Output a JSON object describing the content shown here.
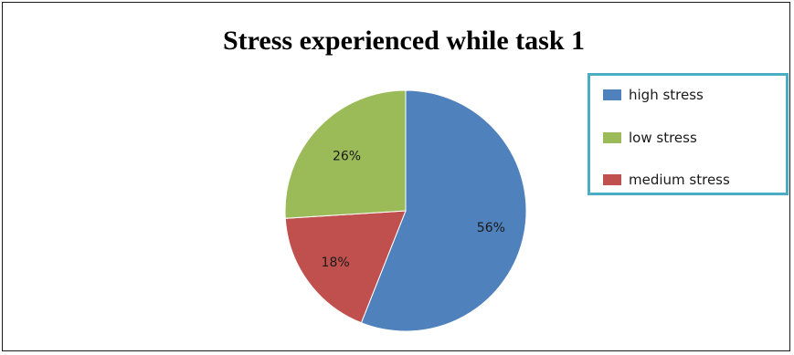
{
  "chart_data": {
    "type": "pie",
    "title": "Stress experienced while task 1",
    "categories": [
      "high stress",
      "medium stress",
      "low stress"
    ],
    "values": [
      56,
      18,
      26
    ],
    "value_labels": [
      "56%",
      "18%",
      "26%"
    ],
    "colors": [
      "#4f81bd",
      "#c0504d",
      "#9bbb59"
    ],
    "legend": {
      "placement": "top-right",
      "entries": [
        {
          "label": "high stress",
          "color": "#4f81bd"
        },
        {
          "label": "low stress",
          "color": "#9bbb59"
        },
        {
          "label": "medium stress",
          "color": "#c0504d"
        }
      ],
      "border_color": "#4bacc6"
    }
  }
}
